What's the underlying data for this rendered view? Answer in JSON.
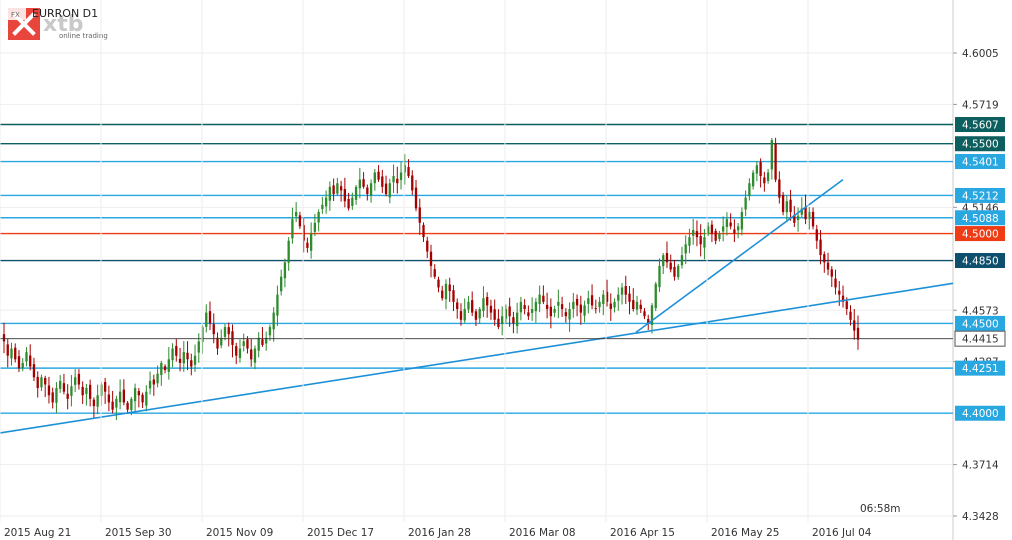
{
  "header": {
    "badge": "FX",
    "symbol": "EURRON D1",
    "logo": "xtb",
    "logo_tagline": "online trading"
  },
  "timer": "06:58m",
  "colors": {
    "bull": "#2e8b2e",
    "bear": "#a50000",
    "trend": "#1e90d8",
    "grid": "#eeeeee"
  },
  "chart_data": {
    "type": "candlestick",
    "symbol": "EURRON D1",
    "ylim": [
      4.33,
      4.64
    ],
    "y_ticks": [
      4.6005,
      4.5719,
      4.5146,
      4.4573,
      4.4287,
      4.3714,
      4.3428
    ],
    "x_ticks": [
      "2015 Aug 21",
      "2015 Sep 30",
      "2015 Nov 09",
      "2015 Dec 17",
      "2016 Jan 28",
      "2016 Mar 08",
      "2016 Apr 15",
      "2016 May 25",
      "2016 Jul 04"
    ],
    "current_price": "4.4415",
    "levels": [
      {
        "label": "4.5607",
        "value": 4.5607,
        "color": "#0d5e5e",
        "text_color": "#ffffff"
      },
      {
        "label": "4.5500",
        "value": 4.55,
        "color": "#0d5e5e",
        "text_color": "#ffffff"
      },
      {
        "label": "4.5401",
        "value": 4.5401,
        "color": "#29a7e1",
        "text_color": "#ffffff"
      },
      {
        "label": "4.5212",
        "value": 4.5212,
        "color": "#29a7e1",
        "text_color": "#ffffff"
      },
      {
        "label": "4.5088",
        "value": 4.5088,
        "color": "#29a7e1",
        "text_color": "#ffffff"
      },
      {
        "label": "4.5000",
        "value": 4.5,
        "color": "#f03c14",
        "text_color": "#ffffff"
      },
      {
        "label": "4.4850",
        "value": 4.485,
        "color": "#0f4f6e",
        "text_color": "#ffffff"
      },
      {
        "label": "4.4500",
        "value": 4.45,
        "color": "#29a7e1",
        "text_color": "#ffffff"
      },
      {
        "label": "4.4251",
        "value": 4.4251,
        "color": "#29a7e1",
        "text_color": "#ffffff"
      },
      {
        "label": "4.4000",
        "value": 4.4,
        "color": "#29a7e1",
        "text_color": "#ffffff"
      }
    ],
    "trendlines": [
      {
        "from": [
          "2015 Aug 04",
          4.389
        ],
        "to": [
          "2016 Jul 24",
          4.4723
        ]
      },
      {
        "from": [
          "2016 Apr 13",
          4.445
        ],
        "to": [
          "2016 Jul 05",
          4.53
        ]
      }
    ],
    "closes": [
      4.44,
      4.432,
      4.436,
      4.43,
      4.425,
      4.428,
      4.434,
      4.426,
      4.42,
      4.414,
      4.42,
      4.416,
      4.41,
      4.406,
      4.414,
      4.418,
      4.412,
      4.408,
      4.415,
      4.42,
      4.416,
      4.41,
      4.414,
      4.408,
      4.404,
      4.41,
      4.416,
      4.412,
      4.406,
      4.402,
      4.408,
      4.412,
      4.406,
      4.402,
      4.408,
      4.414,
      4.41,
      4.406,
      4.412,
      4.418,
      4.416,
      4.422,
      4.428,
      4.424,
      4.43,
      4.436,
      4.432,
      4.428,
      4.434,
      4.43,
      4.426,
      4.432,
      4.44,
      4.448,
      4.456,
      4.45,
      4.444,
      4.436,
      4.442,
      4.448,
      4.444,
      4.438,
      4.432,
      4.436,
      4.44,
      4.436,
      4.43,
      4.436,
      4.442,
      4.438,
      4.442,
      4.448,
      4.456,
      4.466,
      4.476,
      4.484,
      4.496,
      4.508,
      4.512,
      4.504,
      4.496,
      4.492,
      4.5,
      4.506,
      4.512,
      4.516,
      4.52,
      4.526,
      4.522,
      4.528,
      4.524,
      4.518,
      4.514,
      4.52,
      4.526,
      4.53,
      4.526,
      4.522,
      4.528,
      4.534,
      4.53,
      4.526,
      4.522,
      4.528,
      4.532,
      4.528,
      4.534,
      4.538,
      4.532,
      4.524,
      4.514,
      4.506,
      4.498,
      4.49,
      4.482,
      4.476,
      4.47,
      4.464,
      4.472,
      4.468,
      4.462,
      4.458,
      4.452,
      4.458,
      4.462,
      4.456,
      4.452,
      4.458,
      4.464,
      4.46,
      4.456,
      4.452,
      4.448,
      4.454,
      4.458,
      4.454,
      4.45,
      4.456,
      4.462,
      4.458,
      4.454,
      4.458,
      4.462,
      4.466,
      4.462,
      4.458,
      4.454,
      4.458,
      4.462,
      4.458,
      4.454,
      4.458,
      4.462,
      4.46,
      4.456,
      4.46,
      4.464,
      4.46,
      4.458,
      4.462,
      4.466,
      4.462,
      4.458,
      4.462,
      4.466,
      4.47,
      4.466,
      4.462,
      4.458,
      4.462,
      4.458,
      4.454,
      4.45,
      4.46,
      4.472,
      4.482,
      4.488,
      4.484,
      4.48,
      4.476,
      4.482,
      4.488,
      4.494,
      4.498,
      4.502,
      4.498,
      4.494,
      4.498,
      4.504,
      4.5,
      4.496,
      4.5,
      4.504,
      4.508,
      4.504,
      4.5,
      4.504,
      4.512,
      4.52,
      4.528,
      4.534,
      4.538,
      4.532,
      4.528,
      4.534,
      4.552,
      4.53,
      4.52,
      4.512,
      4.518,
      4.512,
      4.506,
      4.51,
      4.514,
      4.508,
      4.512,
      4.504,
      4.496,
      4.488,
      4.484,
      4.48,
      4.476,
      4.47,
      4.466,
      4.462,
      4.458,
      4.452,
      4.446,
      4.441
    ]
  }
}
